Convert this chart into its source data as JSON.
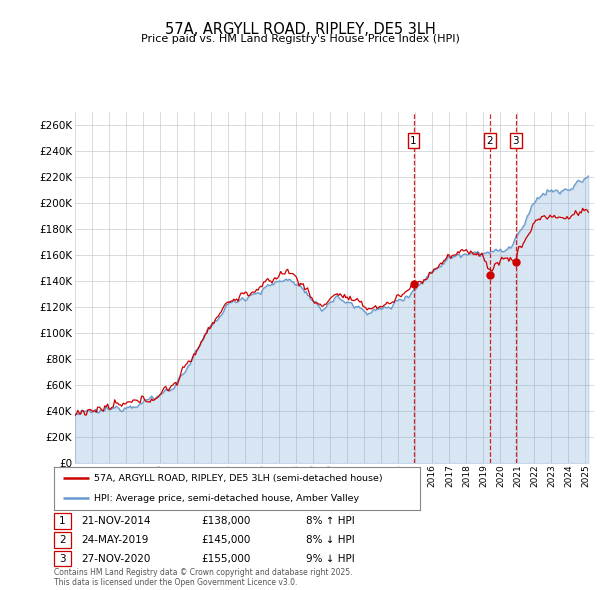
{
  "title": "57A, ARGYLL ROAD, RIPLEY, DE5 3LH",
  "subtitle": "Price paid vs. HM Land Registry's House Price Index (HPI)",
  "ylim": [
    0,
    270000
  ],
  "yticks": [
    0,
    20000,
    40000,
    60000,
    80000,
    100000,
    120000,
    140000,
    160000,
    180000,
    200000,
    220000,
    240000,
    260000
  ],
  "xlim_start": 1995.0,
  "xlim_end": 2025.5,
  "sale_dates": [
    2014.896,
    2019.389,
    2020.904
  ],
  "sale_prices": [
    138000,
    145000,
    155000
  ],
  "sale_labels": [
    "1",
    "2",
    "3"
  ],
  "sale_info": [
    {
      "num": "1",
      "date": "21-NOV-2014",
      "price": "£138,000",
      "note": "8% ↑ HPI"
    },
    {
      "num": "2",
      "date": "24-MAY-2019",
      "price": "£145,000",
      "note": "8% ↓ HPI"
    },
    {
      "num": "3",
      "date": "27-NOV-2020",
      "price": "£155,000",
      "note": "9% ↓ HPI"
    }
  ],
  "legend_property": "57A, ARGYLL ROAD, RIPLEY, DE5 3LH (semi-detached house)",
  "legend_hpi": "HPI: Average price, semi-detached house, Amber Valley",
  "footer": "Contains HM Land Registry data © Crown copyright and database right 2025.\nThis data is licensed under the Open Government Licence v3.0.",
  "property_color": "#cc0000",
  "hpi_color": "#6699cc",
  "hpi_fill_color": "#ddeeff",
  "sale_vline_color": "#cc0000",
  "sale_dot_color": "#cc0000",
  "background_color": "#ffffff",
  "grid_color": "#cccccc"
}
